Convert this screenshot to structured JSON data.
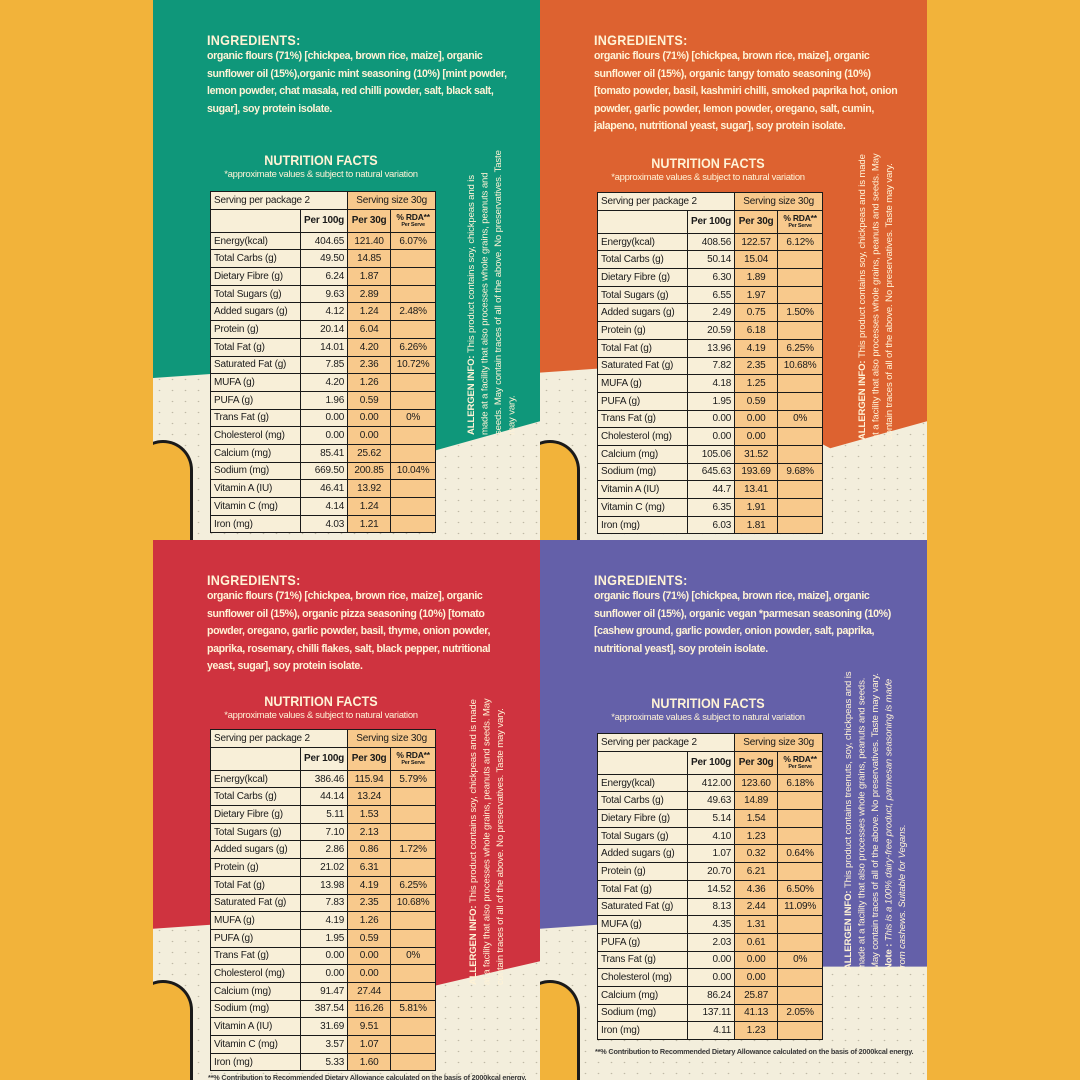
{
  "footnote": "**% Contribution to Recommended Dietary Allowance calculated on the basis of 2000kcal energy.",
  "labels": {
    "ingredients": "INGREDIENTS:",
    "nutrition": "NUTRITION FACTS",
    "subtitle": "*approximate values & subject to natural variation",
    "serving_pkg": "Serving per package 2",
    "serving_size": "Serving size 30g",
    "per100": "Per 100g",
    "per30": "Per 30g",
    "rda": "% RDA**",
    "rda_sub": "Per Serve",
    "allergen_head": "ALLERGEN INFO:",
    "note_head": "Note :"
  },
  "colors": {
    "background": "#F2B33A",
    "mint": "#0F977A",
    "tomato": "#DD6230",
    "pizza": "#CF333F",
    "parmesan": "#6460A9",
    "cream": "#F3EEDC",
    "cell_orange": "#F8C98C"
  },
  "panels": [
    {
      "color": "#0F977A",
      "ingredients": "organic flours (71%) [chickpea, brown rice, maize], organic sunflower oil (15%),organic mint seasoning (10%) [mint powder, lemon powder, chat masala, red chilli powder, salt, black salt, sugar], soy protein isolate.",
      "allergen": "This product contains soy, chickpeas and is made at a facility that also processes whole grains, peanuts and seeds. May contain traces of all of the above. No preservatives. Taste may vary.",
      "rows": [
        [
          "Energy(kcal)",
          "404.65",
          "121.40",
          "6.07%"
        ],
        [
          "Total Carbs (g)",
          "49.50",
          "14.85",
          ""
        ],
        [
          "Dietary Fibre (g)",
          "6.24",
          "1.87",
          ""
        ],
        [
          "Total Sugars (g)",
          "9.63",
          "2.89",
          ""
        ],
        [
          "Added sugars (g)",
          "4.12",
          "1.24",
          "2.48%"
        ],
        [
          "Protein (g)",
          "20.14",
          "6.04",
          ""
        ],
        [
          "Total Fat (g)",
          "14.01",
          "4.20",
          "6.26%"
        ],
        [
          "Saturated Fat (g)",
          "7.85",
          "2.36",
          "10.72%"
        ],
        [
          "MUFA (g)",
          "4.20",
          "1.26",
          ""
        ],
        [
          "PUFA (g)",
          "1.96",
          "0.59",
          ""
        ],
        [
          "Trans Fat (g)",
          "0.00",
          "0.00",
          "0%"
        ],
        [
          "Cholesterol (mg)",
          "0.00",
          "0.00",
          ""
        ],
        [
          "Calcium (mg)",
          "85.41",
          "25.62",
          ""
        ],
        [
          "Sodium (mg)",
          "669.50",
          "200.85",
          "10.04%"
        ],
        [
          "Vitamin A (IU)",
          "46.41",
          "13.92",
          ""
        ],
        [
          "Vitamin C (mg)",
          "4.14",
          "1.24",
          ""
        ],
        [
          "Iron (mg)",
          "4.03",
          "1.21",
          ""
        ]
      ]
    },
    {
      "color": "#DD6230",
      "ingredients": "organic flours (71%) [chickpea, brown rice, maize], organic sunflower oil (15%), organic tangy tomato seasoning (10%) [tomato powder, basil, kashmiri chilli, smoked paprika hot, onion powder, garlic powder, lemon powder, oregano, salt, cumin, jalapeno, nutritional yeast, sugar], soy protein isolate.",
      "allergen": "This product contains soy, chickpeas and is made at a facility that also processes whole grains, peanuts and seeds. May contain traces of all of the above. No preservatives. Taste may vary.",
      "rows": [
        [
          "Energy(kcal)",
          "408.56",
          "122.57",
          "6.12%"
        ],
        [
          "Total Carbs (g)",
          "50.14",
          "15.04",
          ""
        ],
        [
          "Dietary Fibre (g)",
          "6.30",
          "1.89",
          ""
        ],
        [
          "Total Sugars (g)",
          "6.55",
          "1.97",
          ""
        ],
        [
          "Added sugars (g)",
          "2.49",
          "0.75",
          "1.50%"
        ],
        [
          "Protein (g)",
          "20.59",
          "6.18",
          ""
        ],
        [
          "Total Fat (g)",
          "13.96",
          "4.19",
          "6.25%"
        ],
        [
          "Saturated Fat (g)",
          "7.82",
          "2.35",
          "10.68%"
        ],
        [
          "MUFA (g)",
          "4.18",
          "1.25",
          ""
        ],
        [
          "PUFA (g)",
          "1.95",
          "0.59",
          ""
        ],
        [
          "Trans Fat (g)",
          "0.00",
          "0.00",
          "0%"
        ],
        [
          "Cholesterol (mg)",
          "0.00",
          "0.00",
          ""
        ],
        [
          "Calcium (mg)",
          "105.06",
          "31.52",
          ""
        ],
        [
          "Sodium (mg)",
          "645.63",
          "193.69",
          "9.68%"
        ],
        [
          "Vitamin A (IU)",
          "44.7",
          "13.41",
          ""
        ],
        [
          "Vitamin C (mg)",
          "6.35",
          "1.91",
          ""
        ],
        [
          "Iron (mg)",
          "6.03",
          "1.81",
          ""
        ]
      ]
    },
    {
      "color": "#CF333F",
      "ingredients": "organic flours (71%) [chickpea, brown rice, maize], organic sunflower oil (15%), organic pizza seasoning (10%) [tomato powder, oregano, garlic powder, basil, thyme, onion powder, paprika, rosemary, chilli flakes, salt, black pepper, nutritional yeast, sugar], soy protein isolate.",
      "allergen": "This product contains soy, chickpeas and is made at a facility that also processes whole grains, peanuts and seeds. May contain traces of all of the above. No preservatives. Taste may vary.",
      "rows": [
        [
          "Energy(kcal)",
          "386.46",
          "115.94",
          "5.79%"
        ],
        [
          "Total Carbs (g)",
          "44.14",
          "13.24",
          ""
        ],
        [
          "Dietary Fibre (g)",
          "5.11",
          "1.53",
          ""
        ],
        [
          "Total Sugars (g)",
          "7.10",
          "2.13",
          ""
        ],
        [
          "Added sugars (g)",
          "2.86",
          "0.86",
          "1.72%"
        ],
        [
          "Protein (g)",
          "21.02",
          "6.31",
          ""
        ],
        [
          "Total Fat (g)",
          "13.98",
          "4.19",
          "6.25%"
        ],
        [
          "Saturated Fat (g)",
          "7.83",
          "2.35",
          "10.68%"
        ],
        [
          "MUFA (g)",
          "4.19",
          "1.26",
          ""
        ],
        [
          "PUFA (g)",
          "1.95",
          "0.59",
          ""
        ],
        [
          "Trans Fat (g)",
          "0.00",
          "0.00",
          "0%"
        ],
        [
          "Cholesterol (mg)",
          "0.00",
          "0.00",
          ""
        ],
        [
          "Calcium (mg)",
          "91.47",
          "27.44",
          ""
        ],
        [
          "Sodium (mg)",
          "387.54",
          "116.26",
          "5.81%"
        ],
        [
          "Vitamin A (IU)",
          "31.69",
          "9.51",
          ""
        ],
        [
          "Vitamin C (mg)",
          "3.57",
          "1.07",
          ""
        ],
        [
          "Iron (mg)",
          "5.33",
          "1.60",
          ""
        ]
      ]
    },
    {
      "color": "#6460A9",
      "ingredients": "organic flours (71%) [chickpea, brown rice, maize], organic sunflower oil (15%), organic vegan *parmesan seasoning (10%) [cashew ground, garlic powder, onion powder, salt, paprika, nutritional yeast], soy protein isolate.",
      "allergen": "This product contains  treenuts, soy, chickpeas and is made at a facility that also processes whole grains, peanuts and seeds. May contain traces of all of the above. No preservatives. Taste may vary.",
      "note": "This is a 100% dairy-free product, parmesan seasoning is made from cashews. Suitable for Vegans.",
      "rows": [
        [
          "Energy(kcal)",
          "412.00",
          "123.60",
          "6.18%"
        ],
        [
          "Total Carbs (g)",
          "49.63",
          "14.89",
          ""
        ],
        [
          "Dietary Fibre (g)",
          "5.14",
          "1.54",
          ""
        ],
        [
          "Total Sugars (g)",
          "4.10",
          "1.23",
          ""
        ],
        [
          "Added sugars (g)",
          "1.07",
          "0.32",
          "0.64%"
        ],
        [
          "Protein (g)",
          "20.70",
          "6.21",
          ""
        ],
        [
          "Total Fat (g)",
          "14.52",
          "4.36",
          "6.50%"
        ],
        [
          "Saturated Fat (g)",
          "8.13",
          "2.44",
          "11.09%"
        ],
        [
          "MUFA (g)",
          "4.35",
          "1.31",
          ""
        ],
        [
          "PUFA (g)",
          "2.03",
          "0.61",
          ""
        ],
        [
          "Trans Fat (g)",
          "0.00",
          "0.00",
          "0%"
        ],
        [
          "Cholesterol (mg)",
          "0.00",
          "0.00",
          ""
        ],
        [
          "Calcium (mg)",
          "86.24",
          "25.87",
          ""
        ],
        [
          "Sodium (mg)",
          "137.11",
          "41.13",
          "2.05%"
        ],
        [
          "Iron (mg)",
          "4.11",
          "1.23",
          ""
        ]
      ]
    }
  ]
}
